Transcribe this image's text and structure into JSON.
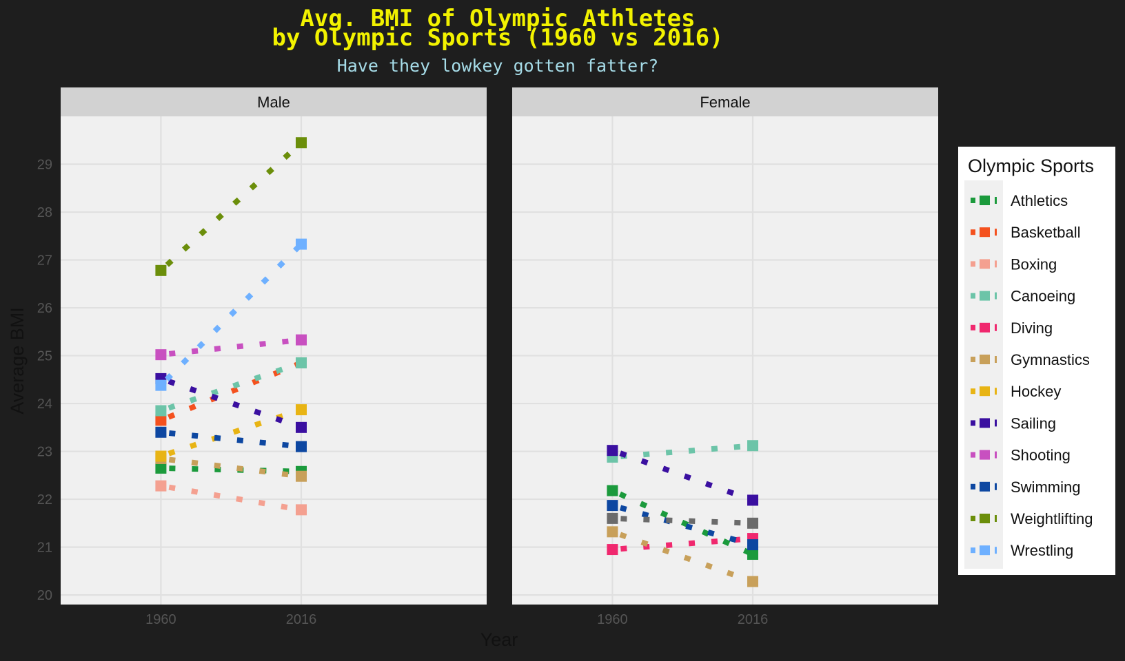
{
  "chart_data": {
    "type": "line",
    "title_lines": [
      "Avg. BMI of Olympic Athletes",
      "by Olympic Sports (1960 vs 2016)"
    ],
    "subtitle": "Have they lowkey gotten fatter?",
    "xlabel": "Year",
    "ylabel": "Average BMI",
    "x": [
      1960,
      2016
    ],
    "x_tick_labels": [
      "1960",
      "2016"
    ],
    "y_ticks": [
      20,
      21,
      22,
      23,
      24,
      25,
      26,
      27,
      28,
      29
    ],
    "ylim": [
      19.8,
      30.0
    ],
    "grid": true,
    "legend": {
      "title": "Olympic Sports",
      "position": "right"
    },
    "colors": {
      "background": "#1e1e1e",
      "panel": "#f0f0f0",
      "strip": "#d2d2d2",
      "gridline": "#e0e0e0",
      "title": "#f2f200",
      "subtitle": "#a6dce8",
      "tick": "#555555"
    },
    "facets": [
      {
        "name": "Male",
        "series": [
          {
            "name": "Athletics",
            "color": "#1b9a3c",
            "values": [
              22.65,
              22.58
            ]
          },
          {
            "name": "Basketball",
            "color": "#f4511e",
            "values": [
              23.65,
              24.85
            ]
          },
          {
            "name": "Boxing",
            "color": "#f4a090",
            "values": [
              22.28,
              21.78
            ]
          },
          {
            "name": "Canoeing",
            "color": "#6cc4a8",
            "values": [
              23.85,
              24.85
            ]
          },
          {
            "name": "Gymnastics",
            "color": "#c8a05a",
            "values": [
              22.85,
              22.48
            ]
          },
          {
            "name": "Hockey",
            "color": "#e8b414",
            "values": [
              22.9,
              23.87
            ]
          },
          {
            "name": "Sailing",
            "color": "#3a0fa0",
            "values": [
              24.52,
              23.5
            ]
          },
          {
            "name": "Shooting",
            "color": "#c850c0",
            "values": [
              25.02,
              25.33
            ]
          },
          {
            "name": "Swimming",
            "color": "#0d47a1",
            "values": [
              23.4,
              23.1
            ]
          },
          {
            "name": "Weightlifting",
            "color": "#6b8e0a",
            "values": [
              26.78,
              29.45
            ]
          },
          {
            "name": "Wrestling",
            "color": "#6eb0ff",
            "values": [
              24.38,
              27.33
            ]
          }
        ]
      },
      {
        "name": "Female",
        "series": [
          {
            "name": "Athletics",
            "color": "#1b9a3c",
            "values": [
              22.18,
              20.85
            ]
          },
          {
            "name": "Canoeing",
            "color": "#6cc4a8",
            "values": [
              22.88,
              23.12
            ]
          },
          {
            "name": "Diving",
            "color": "#f0286e",
            "values": [
              20.95,
              21.18
            ]
          },
          {
            "name": "Gymnastics",
            "color": "#c8a05a",
            "values": [
              21.32,
              20.28
            ]
          },
          {
            "name": "Sailing",
            "color": "#3a0fa0",
            "values": [
              23.02,
              21.98
            ]
          },
          {
            "name": "Swimming",
            "color": "#0d47a1",
            "values": [
              21.87,
              21.05
            ]
          },
          {
            "name": "",
            "color": "#6b6b6b",
            "values": [
              21.6,
              21.5
            ]
          }
        ]
      }
    ],
    "legend_entries": [
      {
        "name": "Athletics",
        "color": "#1b9a3c"
      },
      {
        "name": "Basketball",
        "color": "#f4511e"
      },
      {
        "name": "Boxing",
        "color": "#f4a090"
      },
      {
        "name": "Canoeing",
        "color": "#6cc4a8"
      },
      {
        "name": "Diving",
        "color": "#f0286e"
      },
      {
        "name": "Gymnastics",
        "color": "#c8a05a"
      },
      {
        "name": "Hockey",
        "color": "#e8b414"
      },
      {
        "name": "Sailing",
        "color": "#3a0fa0"
      },
      {
        "name": "Shooting",
        "color": "#c850c0"
      },
      {
        "name": "Swimming",
        "color": "#0d47a1"
      },
      {
        "name": "Weightlifting",
        "color": "#6b8e0a"
      },
      {
        "name": "Wrestling",
        "color": "#6eb0ff"
      }
    ]
  }
}
